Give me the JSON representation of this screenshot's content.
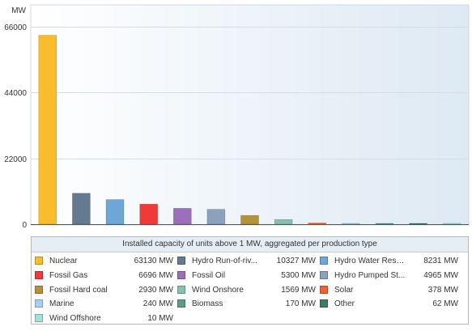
{
  "chart_data": {
    "type": "bar",
    "ylabel": "MW",
    "ylim": [
      0,
      66000
    ],
    "yticks": [
      "0",
      "22000",
      "44000",
      "66000"
    ],
    "ytick_values": [
      0,
      22000,
      44000,
      66000
    ],
    "grid": true,
    "legend_title": "Installed capacity of units above 1 MW, aggregated per production type",
    "legend_placement": "bottom",
    "categories": [
      "Nuclear",
      "Hydro Run-of-river and poundage",
      "Hydro Water Reservoir",
      "Fossil Gas",
      "Fossil Oil",
      "Hydro Pumped Storage",
      "Fossil Hard coal",
      "Wind Onshore",
      "Solar",
      "Marine",
      "Biomass",
      "Other",
      "Wind Offshore"
    ],
    "legend_labels": [
      "Nuclear",
      "Hydro Run-of-riv...",
      "Hydro Water Rese...",
      "Fossil Gas",
      "Fossil Oil",
      "Hydro Pumped St...",
      "Fossil Hard coal",
      "Wind Onshore",
      "Solar",
      "Marine",
      "Biomass",
      "Other",
      "Wind Offshore"
    ],
    "values": [
      63130,
      10327,
      8231,
      6696,
      5300,
      4965,
      2930,
      1569,
      378,
      240,
      170,
      62,
      10
    ],
    "value_labels": [
      "63130 MW",
      "10327 MW",
      "8231 MW",
      "6696 MW",
      "5300 MW",
      "4965 MW",
      "2930 MW",
      "1569 MW",
      "378 MW",
      "240 MW",
      "170 MW",
      "62 MW",
      "10 MW"
    ],
    "colors": [
      "#f8bc2c",
      "#637a91",
      "#6fa6d8",
      "#f03a3a",
      "#9a70ba",
      "#8aa2be",
      "#b4923d",
      "#86c0ae",
      "#ee6331",
      "#a6cff0",
      "#5e9b8b",
      "#3f7a6a",
      "#a4e1d6"
    ]
  }
}
